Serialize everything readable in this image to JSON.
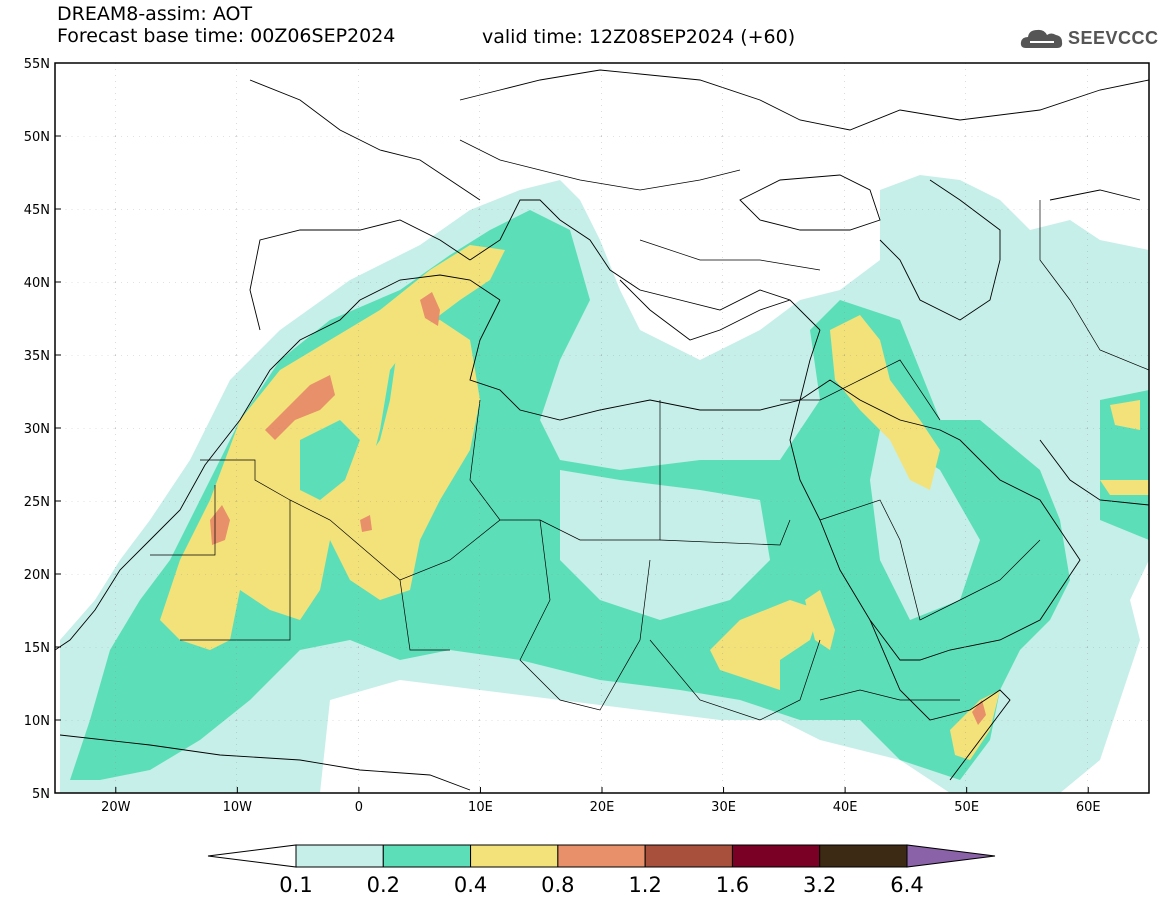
{
  "header": {
    "title": "DREAM8-assim: AOT",
    "base_time": "Forecast base time: 00Z06SEP2024",
    "valid_time": "valid time: 12Z08SEP2024 (+60)",
    "logo_text": "SEEVCCC"
  },
  "axes": {
    "lat_labels": [
      "55N",
      "50N",
      "45N",
      "40N",
      "35N",
      "30N",
      "25N",
      "20N",
      "15N",
      "10N",
      "5N"
    ],
    "lon_labels": [
      "20W",
      "10W",
      "0",
      "10E",
      "20E",
      "30E",
      "40E",
      "50E",
      "60E"
    ],
    "lat_range": [
      5,
      55
    ],
    "lon_range": [
      -25,
      65
    ]
  },
  "legend": {
    "labels": [
      "0.1",
      "0.2",
      "0.4",
      "0.8",
      "1.2",
      "1.6",
      "3.2",
      "6.4"
    ],
    "colors": [
      "#ffffff",
      "#c6efe9",
      "#5cdfb8",
      "#f3e27a",
      "#e8906a",
      "#a8503c",
      "#7a0026",
      "#3d2a14",
      "#8a62a8"
    ]
  },
  "colors": {
    "aot_0_1": "#c6efe9",
    "aot_0_2": "#5cdfb8",
    "aot_0_4": "#f3e27a",
    "aot_0_8": "#e8906a"
  }
}
